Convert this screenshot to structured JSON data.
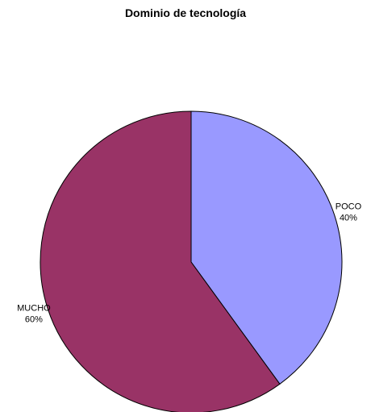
{
  "chart_data": {
    "type": "pie",
    "title": "Dominio de tecnología",
    "start_angle_deg": 0,
    "direction": "clockwise",
    "slices": [
      {
        "label": "POCO",
        "value": 40,
        "percent_label": "40%",
        "color": "#9999ff"
      },
      {
        "label": "MUCHO",
        "value": 60,
        "percent_label": "60%",
        "color": "#993366"
      }
    ]
  }
}
